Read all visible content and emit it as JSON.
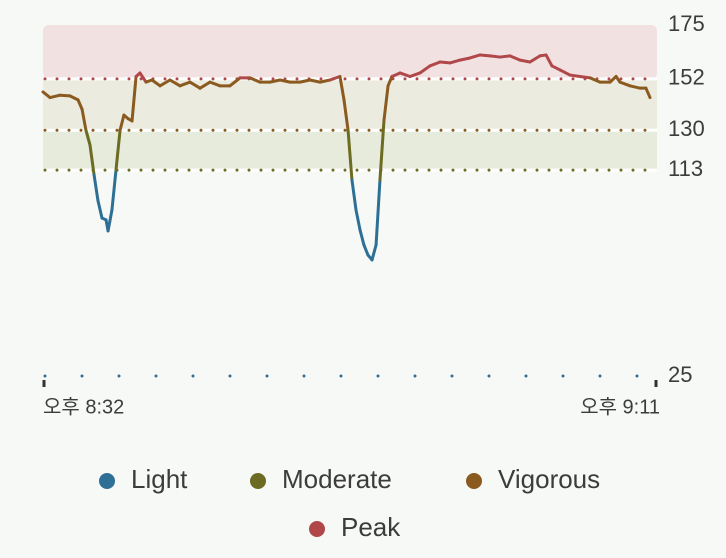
{
  "chart_data": {
    "type": "line",
    "x": [
      0,
      0.45,
      1.09,
      1.73,
      2.25,
      2.51,
      2.76,
      3.02,
      3.28,
      3.53,
      3.79,
      4.05,
      4.18,
      4.43,
      4.69,
      4.95,
      5.2,
      5.46,
      5.72,
      5.98,
      6.23,
      6.62,
      7.0,
      7.52,
      8.16,
      8.8,
      9.44,
      10.09,
      10.73,
      11.37,
      12.01,
      12.66,
      13.3,
      13.94,
      14.58,
      15.23,
      15.87,
      16.51,
      17.15,
      17.8,
      18.44,
      19.08,
      19.34,
      19.6,
      19.85,
      20.11,
      20.37,
      20.62,
      20.88,
      21.14,
      21.4,
      21.65,
      21.91,
      22.17,
      22.42,
      22.94,
      23.58,
      24.22,
      24.86,
      25.51,
      26.15,
      26.79,
      27.43,
      28.08,
      28.72,
      29.36,
      30.0,
      30.65,
      31.29,
      31.93,
      32.32,
      32.7,
      33.22,
      33.86,
      34.5,
      35.15,
      35.79,
      36.43,
      36.82,
      37.07,
      37.71,
      38.36,
      38.74,
      39.0
    ],
    "values": [
      146.4,
      144,
      145,
      144.7,
      143,
      139,
      130,
      123.7,
      111,
      100,
      92.5,
      91.7,
      87,
      96,
      113,
      130,
      136.5,
      135,
      134,
      153,
      154.5,
      150.6,
      151.5,
      149,
      151.5,
      149,
      150.6,
      148,
      150.6,
      149,
      149,
      152.4,
      152.4,
      150.6,
      150.6,
      151.5,
      150.6,
      150.6,
      151.5,
      150.6,
      151.5,
      153,
      143,
      130,
      108.8,
      96,
      87.4,
      81,
      76.7,
      74.6,
      81,
      108.8,
      134.4,
      149,
      153,
      154.5,
      153,
      154.5,
      157.5,
      159.2,
      158.8,
      160,
      160.9,
      162.2,
      161.8,
      161.3,
      161.8,
      160,
      159.2,
      161.8,
      162.2,
      157.5,
      155.8,
      153.6,
      153,
      152.4,
      150.6,
      150.6,
      153,
      150.6,
      149,
      148,
      148,
      144
    ],
    "xlim": [
      0,
      39
    ],
    "xticks": [
      {
        "value": 0,
        "label": "오후 8:32"
      },
      {
        "value": 39,
        "label": "오후 9:11"
      }
    ],
    "ylim": [
      25,
      175
    ],
    "yticks": [
      175,
      152,
      130,
      113,
      25
    ],
    "zones": [
      {
        "name": "Light",
        "color": "#2e6f95",
        "min": 25,
        "max": 113
      },
      {
        "name": "Moderate",
        "color": "#6b6b22",
        "min": 113,
        "max": 130,
        "fill": "#e6ebdc"
      },
      {
        "name": "Vigorous",
        "color": "#8a5a1f",
        "min": 130,
        "max": 152,
        "fill": "#ecebdf"
      },
      {
        "name": "Peak",
        "color": "#b0484a",
        "min": 152,
        "max": 175,
        "fill": "#f2e1e1"
      }
    ]
  }
}
